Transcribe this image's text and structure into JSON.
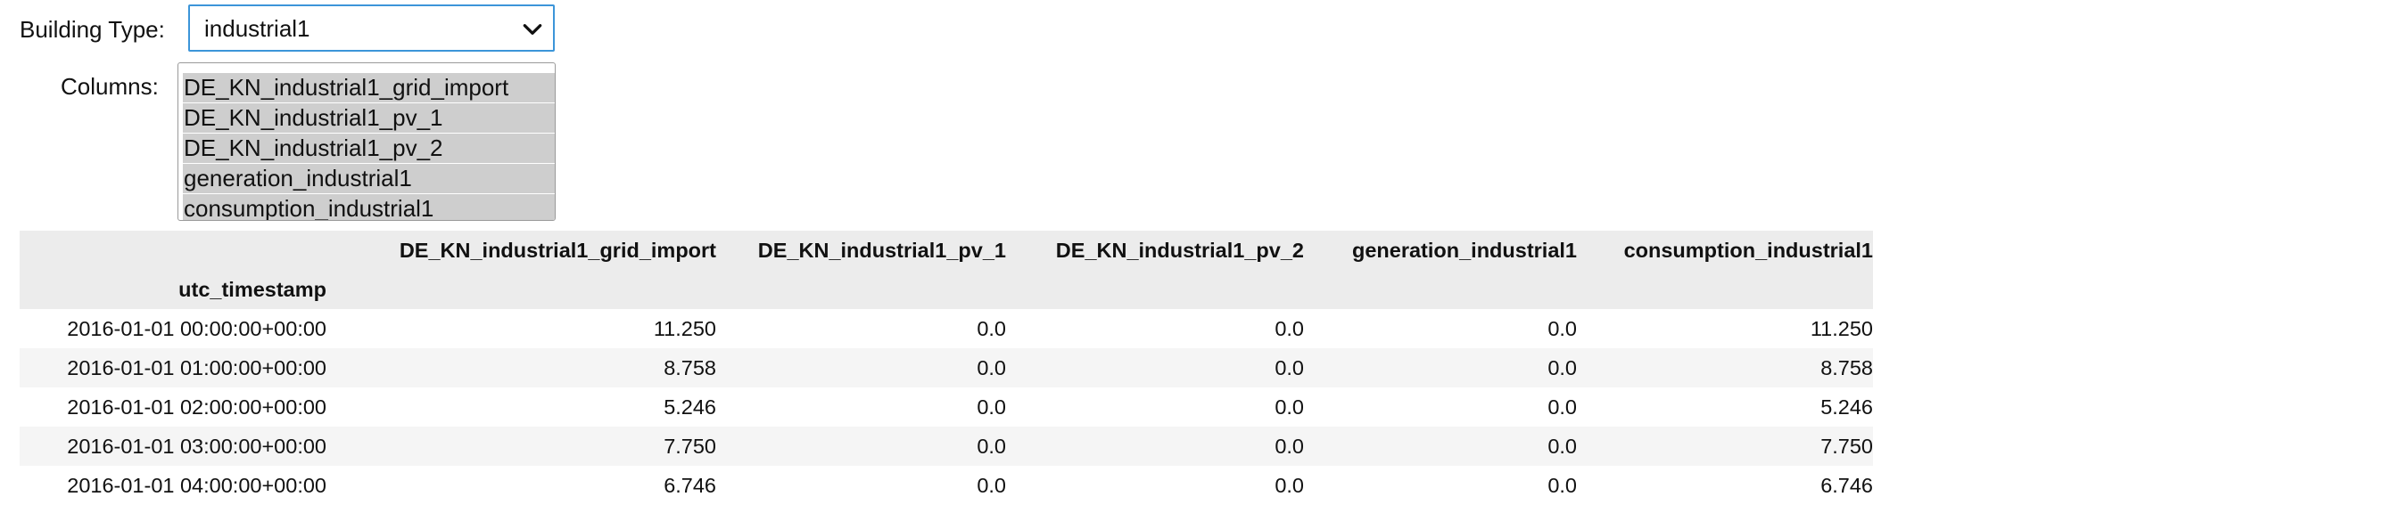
{
  "building_type": {
    "label": "Building Type:",
    "selected": "industrial1"
  },
  "columns": {
    "label": "Columns:",
    "options": [
      "DE_KN_industrial1_grid_import",
      "DE_KN_industrial1_pv_1",
      "DE_KN_industrial1_pv_2",
      "generation_industrial1",
      "consumption_industrial1"
    ]
  },
  "table": {
    "index_name": "utc_timestamp",
    "headers": [
      "DE_KN_industrial1_grid_import",
      "DE_KN_industrial1_pv_1",
      "DE_KN_industrial1_pv_2",
      "generation_industrial1",
      "consumption_industrial1"
    ],
    "rows": [
      {
        "index": "2016-01-01 00:00:00+00:00",
        "values": [
          "11.250",
          "0.0",
          "0.0",
          "0.0",
          "11.250"
        ]
      },
      {
        "index": "2016-01-01 01:00:00+00:00",
        "values": [
          "8.758",
          "0.0",
          "0.0",
          "0.0",
          "8.758"
        ]
      },
      {
        "index": "2016-01-01 02:00:00+00:00",
        "values": [
          "5.246",
          "0.0",
          "0.0",
          "0.0",
          "5.246"
        ]
      },
      {
        "index": "2016-01-01 03:00:00+00:00",
        "values": [
          "7.750",
          "0.0",
          "0.0",
          "0.0",
          "7.750"
        ]
      },
      {
        "index": "2016-01-01 04:00:00+00:00",
        "values": [
          "6.746",
          "0.0",
          "0.0",
          "0.0",
          "6.746"
        ]
      }
    ]
  }
}
